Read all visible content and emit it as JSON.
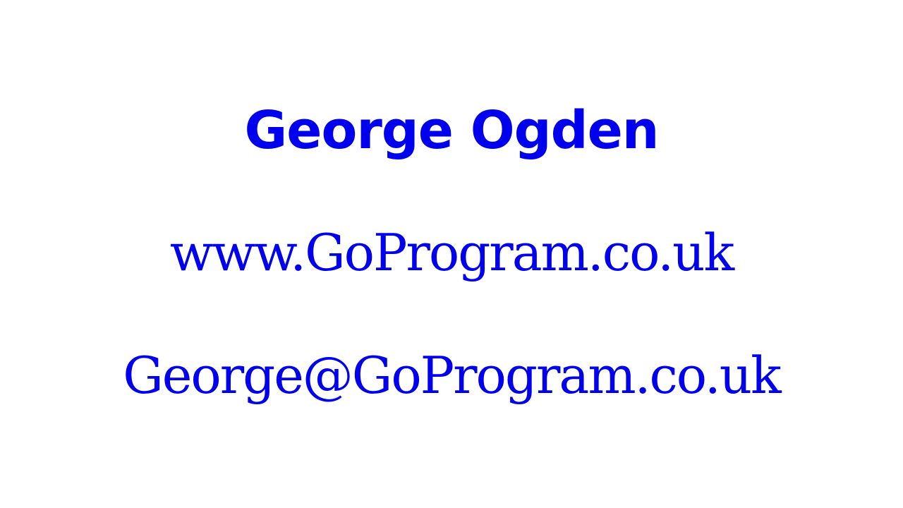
{
  "slide": {
    "name": "George Ogden",
    "website": "www.GoProgram.co.uk",
    "email": "George@GoProgram.co.uk"
  },
  "colors": {
    "text": "#0000ee",
    "background": "#ffffff"
  }
}
